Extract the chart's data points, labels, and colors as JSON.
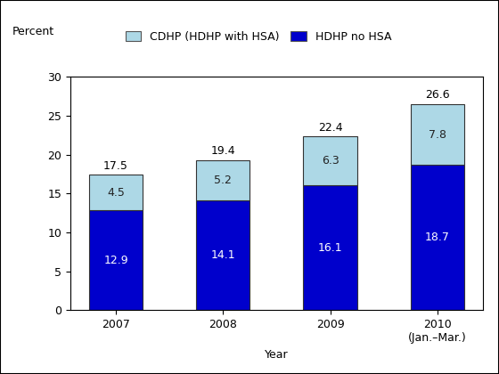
{
  "years": [
    "2007",
    "2008",
    "2009",
    "2010"
  ],
  "x_labels": [
    "2007",
    "2008",
    "2009",
    "2010\n(Jan.–Mar.)"
  ],
  "hdhp_no_hsa": [
    12.9,
    14.1,
    16.1,
    18.7
  ],
  "cdhp_hsa": [
    4.5,
    5.2,
    6.3,
    7.8
  ],
  "totals": [
    17.5,
    19.4,
    22.4,
    26.6
  ],
  "color_hdhp": "#0000CC",
  "color_cdhp": "#ADD8E6",
  "ylabel": "Percent",
  "xlabel": "Year",
  "ylim": [
    0,
    30
  ],
  "yticks": [
    0,
    5,
    10,
    15,
    20,
    25,
    30
  ],
  "legend_cdhp": "CDHP (HDHP with HSA)",
  "legend_hdhp": "HDHP no HSA",
  "bar_width": 0.5,
  "label_fontsize": 9,
  "tick_fontsize": 9,
  "legend_fontsize": 9
}
